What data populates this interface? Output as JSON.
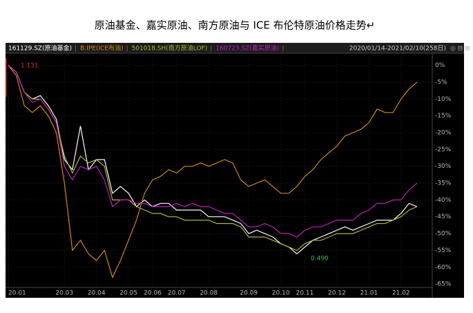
{
  "chart_data": {
    "type": "line",
    "title": "原油基金、嘉实原油、南方原油与 ICE  布伦特原油价格走势↵",
    "date_range": "2020/01/14-2021/02/10(258日)",
    "annotations": [
      "1.131",
      "0.490"
    ],
    "categories": [
      "20.01",
      null,
      null,
      null,
      null,
      null,
      null,
      "20.03",
      null,
      null,
      null,
      "20.04",
      null,
      null,
      null,
      "20.05",
      null,
      null,
      "20.06",
      null,
      null,
      "20.07",
      null,
      null,
      null,
      "20.08",
      null,
      null,
      null,
      null,
      "20.09",
      null,
      null,
      null,
      "20.10",
      null,
      null,
      "20.11",
      null,
      null,
      null,
      "20.12",
      null,
      null,
      null,
      "21.01",
      null,
      null,
      null,
      "21.02",
      null,
      null
    ],
    "ylim": [
      -66,
      3
    ],
    "yticks": [
      {
        "value": 0,
        "label": "0%"
      },
      {
        "value": -5,
        "label": "-5%"
      },
      {
        "value": -10,
        "label": "-10%"
      },
      {
        "value": -15,
        "label": "-15%"
      },
      {
        "value": -20,
        "label": "-20%"
      },
      {
        "value": -25,
        "label": "-25%"
      },
      {
        "value": -30,
        "label": "-30%"
      },
      {
        "value": -35,
        "label": "-35%"
      },
      {
        "value": -40,
        "label": "-40%"
      },
      {
        "value": -45,
        "label": "-45%"
      },
      {
        "value": -50,
        "label": "-50%"
      },
      {
        "value": -55,
        "label": "-55%"
      },
      {
        "value": -60,
        "label": "-60%"
      },
      {
        "value": -65,
        "label": "-65%"
      }
    ],
    "grid": true,
    "series": [
      {
        "name": "161129.SZ(原油基金)",
        "color": "#ffffff",
        "values": [
          0,
          -2,
          -8,
          -10,
          -9,
          -12,
          -16,
          -28,
          -31,
          -18,
          -31,
          -28,
          -28,
          -38,
          -36,
          -38,
          -42,
          -40,
          -42,
          -41,
          -41,
          -43,
          -43,
          -43,
          -43,
          -45,
          -45,
          -45,
          -46,
          -47,
          -50,
          -49,
          -50,
          -51,
          -53,
          -54,
          -56,
          -54,
          -52,
          -51,
          -50,
          -49,
          -48,
          -49,
          -48,
          -47,
          -46,
          -46,
          -46,
          -44,
          -41,
          -42
        ]
      },
      {
        "name": "B.IPE(ICE布油)",
        "color": "#d08a1a",
        "values": [
          0,
          -3,
          -12,
          -14,
          -12,
          -15,
          -20,
          -35,
          -55,
          -52,
          -56,
          -58,
          -55,
          -63,
          -58,
          -52,
          -46,
          -38,
          -34,
          -33,
          -31,
          -32,
          -30,
          -30,
          -29,
          -30,
          -29,
          -28,
          -29,
          -34,
          -36,
          -35,
          -34,
          -36,
          -38,
          -38,
          -36,
          -33,
          -31,
          -28,
          -26,
          -24,
          -21,
          -20,
          -19,
          -17,
          -13,
          -14,
          -14,
          -10,
          -7,
          -5
        ]
      },
      {
        "name": "501018.SH(南方原油LOF)",
        "color": "#b5b53a",
        "values": [
          0,
          -2,
          -8,
          -10,
          -10,
          -13,
          -17,
          -27,
          -32,
          -27,
          -29,
          -28,
          -30,
          -40,
          -40,
          -40,
          -42,
          -43,
          -44,
          -44,
          -45,
          -45,
          -46,
          -46,
          -46,
          -46,
          -47,
          -47,
          -47,
          -48,
          -51,
          -51,
          -51,
          -52,
          -53,
          -54,
          -55,
          -53,
          -52,
          -52,
          -51,
          -50,
          -50,
          -50,
          -49,
          -48,
          -47,
          -47,
          -46,
          -45,
          -43,
          -42
        ]
      },
      {
        "name": "160723.SZ(嘉实原油)",
        "color": "#c020c0",
        "values": [
          0,
          -2,
          -8,
          -11,
          -10,
          -13,
          -17,
          -30,
          -34,
          -30,
          -31,
          -30,
          -34,
          -42,
          -40,
          -40,
          -41,
          -41,
          -42,
          -42,
          -42,
          -41,
          -42,
          -41,
          -42,
          -42,
          -43,
          -44,
          -44,
          -46,
          -48,
          -48,
          -47,
          -48,
          -50,
          -50,
          -51,
          -49,
          -48,
          -48,
          -47,
          -46,
          -46,
          -46,
          -44,
          -43,
          -41,
          -41,
          -40,
          -40,
          -37,
          -35
        ]
      }
    ]
  }
}
